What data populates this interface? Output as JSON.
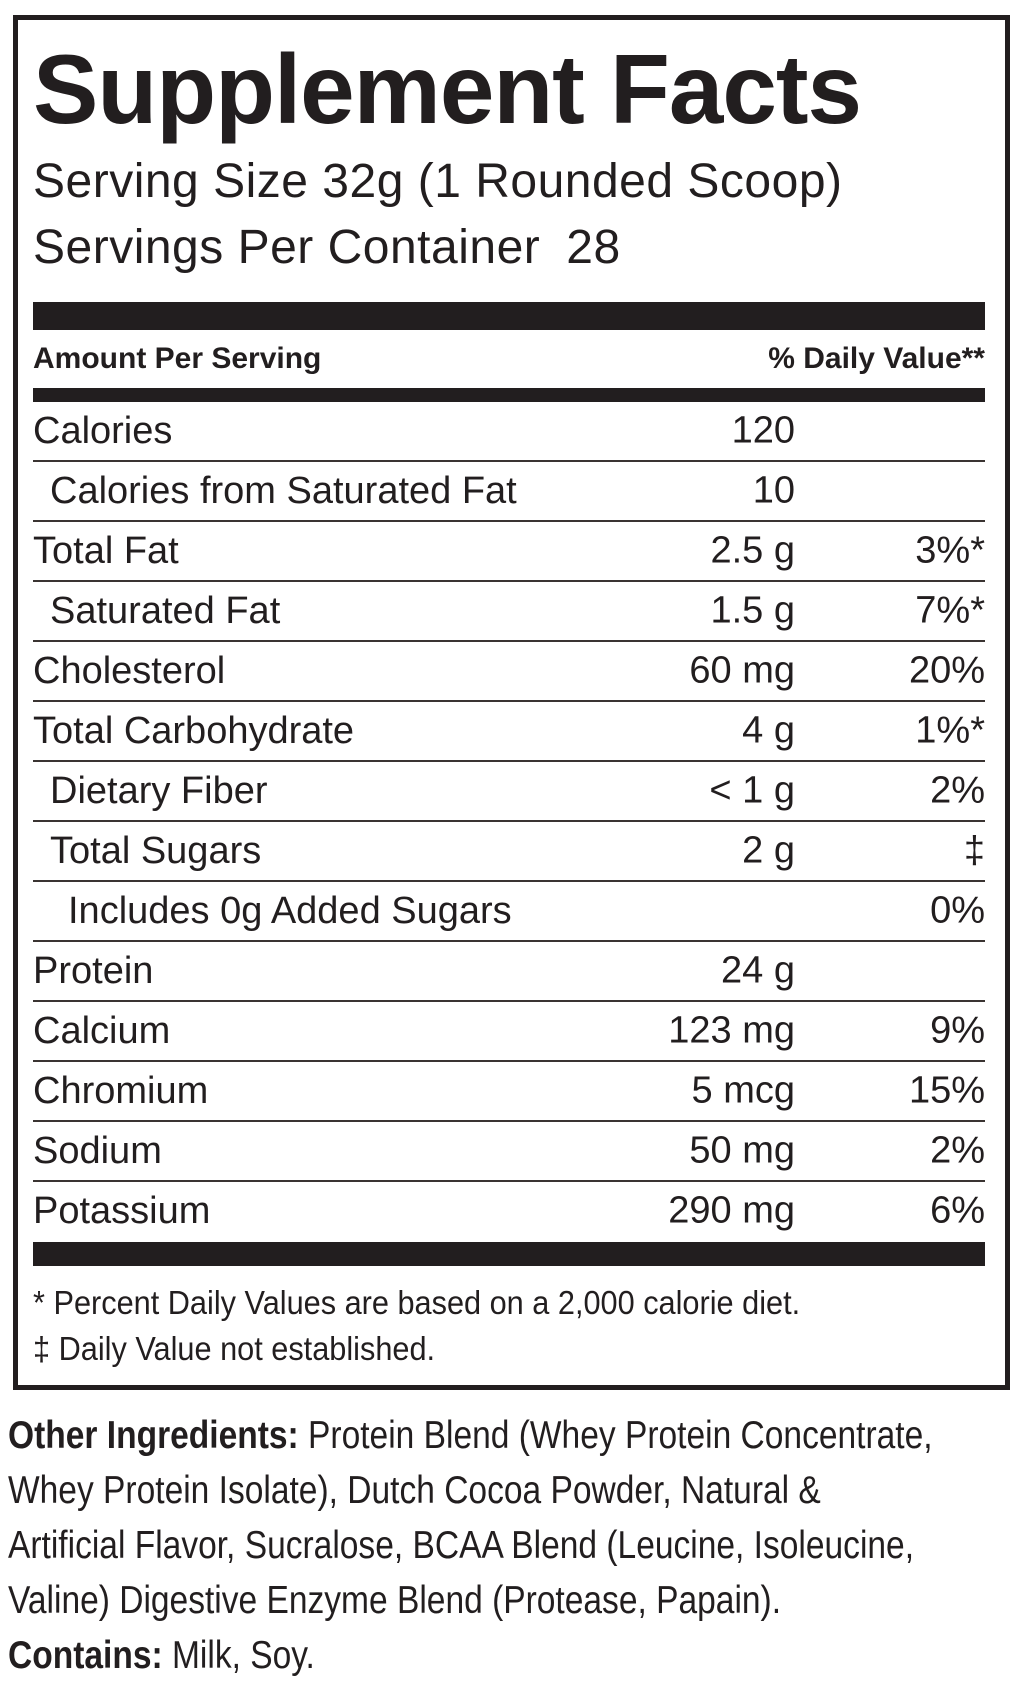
{
  "colors": {
    "ink": "#221e1f",
    "rule": "#3a3432",
    "paper": "#ffffff"
  },
  "panel": {
    "title": "Supplement Facts",
    "serving_size_line": "Serving Size 32g (1 Rounded Scoop)",
    "servings_per_container_label": "Servings Per Container",
    "servings_per_container_value": "28",
    "amount_header": "Amount Per Serving",
    "daily_value_header": "% Daily Value**",
    "rows": [
      {
        "label": "Calories",
        "amount": "120",
        "dv": "",
        "indent": 0
      },
      {
        "label": "Calories from Saturated Fat",
        "amount": "10",
        "dv": "",
        "indent": 1
      },
      {
        "label": "Total Fat",
        "amount": "2.5 g",
        "dv": "3%*",
        "indent": 0
      },
      {
        "label": "Saturated Fat",
        "amount": "1.5 g",
        "dv": "7%*",
        "indent": 1
      },
      {
        "label": "Cholesterol",
        "amount": "60 mg",
        "dv": "20%",
        "indent": 0
      },
      {
        "label": "Total Carbohydrate",
        "amount": "4 g",
        "dv": "1%*",
        "indent": 0
      },
      {
        "label": "Dietary Fiber",
        "amount": "< 1 g",
        "dv": "2%",
        "indent": 1
      },
      {
        "label": "Total Sugars",
        "amount": "2 g",
        "dv": "‡",
        "indent": 1
      },
      {
        "label": "Includes 0g Added Sugars",
        "amount": "",
        "dv": "0%",
        "indent": 2
      },
      {
        "label": "Protein",
        "amount": "24 g",
        "dv": "",
        "indent": 0
      },
      {
        "label": "Calcium",
        "amount": "123 mg",
        "dv": "9%",
        "indent": 0
      },
      {
        "label": "Chromium",
        "amount": "5 mcg",
        "dv": "15%",
        "indent": 0
      },
      {
        "label": "Sodium",
        "amount": "50 mg",
        "dv": "2%",
        "indent": 0
      },
      {
        "label": "Potassium",
        "amount": "290 mg",
        "dv": "6%",
        "indent": 0
      }
    ],
    "footnotes": [
      "* Percent Daily Values are based on a 2,000 calorie diet.",
      "‡ Daily Value not established."
    ]
  },
  "other_ingredients": {
    "label": "Other Ingredients:",
    "lines": [
      "Protein Blend (Whey Protein Concentrate,",
      "Whey Protein Isolate), Dutch Cocoa Powder, Natural &",
      "Artificial Flavor, Sucralose, BCAA Blend (Leucine, Isoleucine,",
      "Valine) Digestive Enzyme Blend (Protease, Papain)."
    ],
    "contains_label": "Contains:",
    "contains_text": "Milk, Soy."
  }
}
